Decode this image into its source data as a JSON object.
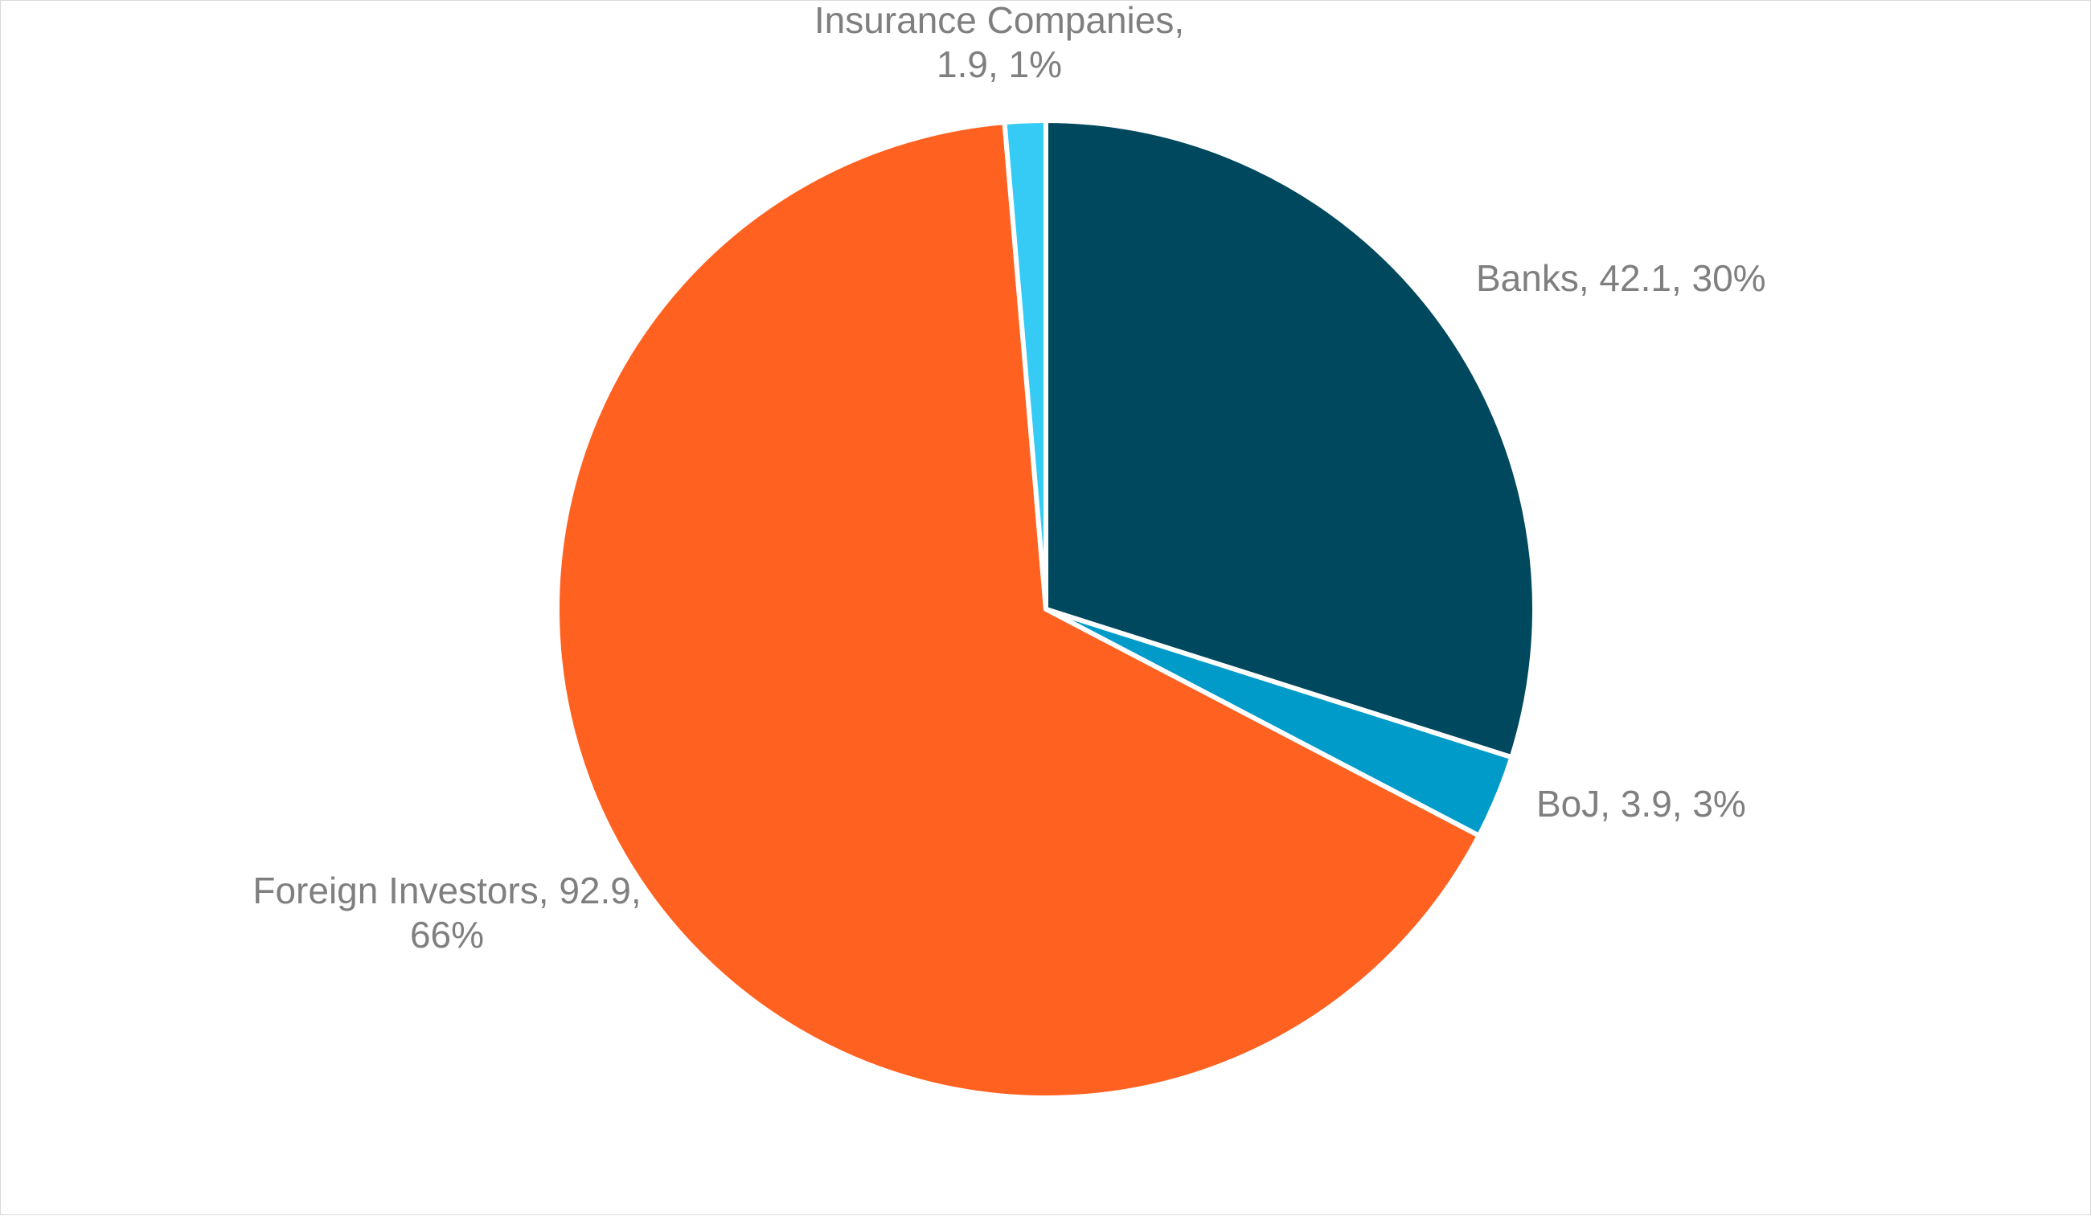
{
  "chart_data": {
    "type": "pie",
    "title": "",
    "legend": "none",
    "slices": [
      {
        "name": "Banks",
        "value": 42.1,
        "percent": 30,
        "color": "#00485e",
        "label_lines": [
          "Banks, 42.1, 30%"
        ]
      },
      {
        "name": "BoJ",
        "value": 3.9,
        "percent": 3,
        "color": "#009bc8",
        "label_lines": [
          "BoJ, 3.9, 3%"
        ]
      },
      {
        "name": "Foreign Investors",
        "value": 92.9,
        "percent": 66,
        "color": "#ff6121",
        "label_lines": [
          "Foreign Investors, 92.9,",
          "66%"
        ]
      },
      {
        "name": "Insurance Companies",
        "value": 1.9,
        "percent": 1,
        "color": "#35cbf4",
        "label_lines": [
          "Insurance Companies,",
          "1.9, 1%"
        ]
      }
    ]
  }
}
